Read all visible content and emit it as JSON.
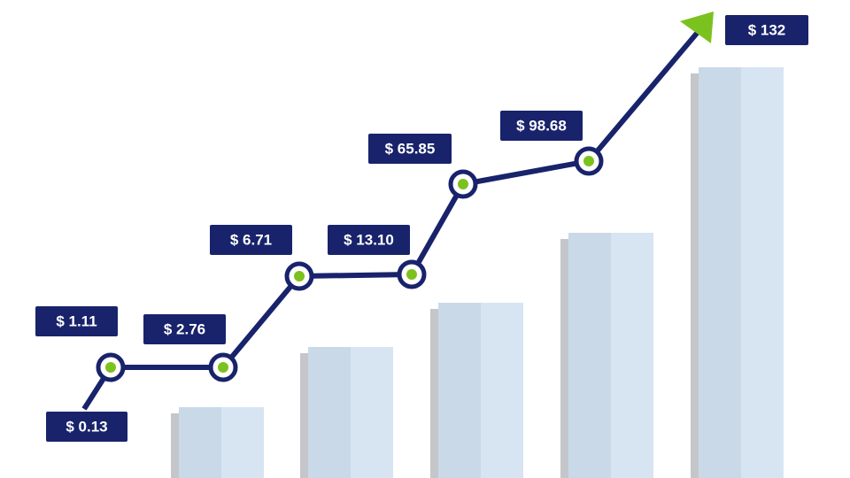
{
  "price_labels": [
    "$ 0.13",
    "$ 1.11",
    "$ 2.76",
    "$ 6.71",
    "$ 13.10",
    "$ 65.85",
    "$ 98.68",
    "$ 132"
  ]
}
